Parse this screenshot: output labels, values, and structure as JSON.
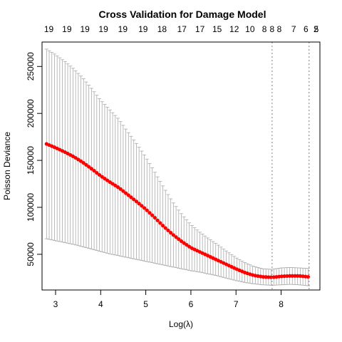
{
  "chart_data": {
    "type": "line",
    "title": "Cross Validation for Damage Model",
    "xlabel": "Log(λ)",
    "ylabel": "Poisson Deviance",
    "xlim": [
      2.7,
      8.86
    ],
    "ylim": [
      12000,
      276000
    ],
    "x_ticks": [
      3,
      4,
      5,
      6,
      7,
      8
    ],
    "y_ticks": [
      50000,
      100000,
      150000,
      200000,
      250000
    ],
    "top_axis": {
      "x": [
        2.85,
        3.08,
        3.32,
        3.55,
        3.79,
        4.03,
        4.26,
        4.5,
        4.73,
        4.97,
        5.21,
        5.44,
        5.68,
        5.91,
        6.15,
        6.39,
        6.62,
        6.86,
        7.09,
        7.33,
        7.56,
        7.8
      ],
      "labels": [
        "19",
        "19",
        "19",
        "19",
        "19",
        "19",
        "18",
        "17",
        "17",
        "15",
        "12",
        "10",
        "8",
        "8",
        "8",
        "7",
        "6",
        "5",
        "2"
      ],
      "label_x": [
        2.85,
        3.25,
        3.65,
        4.06,
        4.49,
        4.94,
        5.36,
        5.8,
        6.2,
        6.58,
        6.96,
        7.31,
        7.63,
        7.8,
        7.96,
        8.28,
        8.55,
        8.78,
        8.77
      ]
    },
    "vlines": [
      7.8,
      8.62
    ],
    "grid": false,
    "legend": "none",
    "series": [
      {
        "color": "#ff0000",
        "error_color": "#a9a9a9",
        "points": [
          {
            "x": 2.8,
            "y": 167500,
            "lo": 66500,
            "hi": 268500
          },
          {
            "x": 3.0,
            "y": 163500,
            "lo": 64500,
            "hi": 262500
          },
          {
            "x": 3.2,
            "y": 159000,
            "lo": 62500,
            "hi": 255500
          },
          {
            "x": 3.4,
            "y": 154000,
            "lo": 60500,
            "hi": 247500
          },
          {
            "x": 3.6,
            "y": 148000,
            "lo": 58000,
            "hi": 238000
          },
          {
            "x": 3.8,
            "y": 141000,
            "lo": 55500,
            "hi": 226500
          },
          {
            "x": 4.0,
            "y": 133500,
            "lo": 53000,
            "hi": 214000
          },
          {
            "x": 4.2,
            "y": 127000,
            "lo": 50500,
            "hi": 204000
          },
          {
            "x": 4.4,
            "y": 121000,
            "lo": 48500,
            "hi": 194000
          },
          {
            "x": 4.6,
            "y": 113500,
            "lo": 46500,
            "hi": 180500
          },
          {
            "x": 4.8,
            "y": 106000,
            "lo": 44500,
            "hi": 167500
          },
          {
            "x": 5.0,
            "y": 98000,
            "lo": 42500,
            "hi": 153500
          },
          {
            "x": 5.2,
            "y": 89000,
            "lo": 40500,
            "hi": 137500
          },
          {
            "x": 5.4,
            "y": 79500,
            "lo": 38500,
            "hi": 121000
          },
          {
            "x": 5.6,
            "y": 71000,
            "lo": 36500,
            "hi": 105500
          },
          {
            "x": 5.8,
            "y": 63500,
            "lo": 34500,
            "hi": 92500
          },
          {
            "x": 6.0,
            "y": 57000,
            "lo": 32500,
            "hi": 81500
          },
          {
            "x": 6.2,
            "y": 52500,
            "lo": 31000,
            "hi": 73500
          },
          {
            "x": 6.4,
            "y": 48000,
            "lo": 29000,
            "hi": 66500
          },
          {
            "x": 6.6,
            "y": 43500,
            "lo": 27000,
            "hi": 60000
          },
          {
            "x": 6.8,
            "y": 39000,
            "lo": 24500,
            "hi": 53000
          },
          {
            "x": 7.0,
            "y": 34500,
            "lo": 22000,
            "hi": 46500
          },
          {
            "x": 7.2,
            "y": 30500,
            "lo": 20000,
            "hi": 41000
          },
          {
            "x": 7.4,
            "y": 27500,
            "lo": 18500,
            "hi": 37000
          },
          {
            "x": 7.6,
            "y": 26000,
            "lo": 17500,
            "hi": 34500
          },
          {
            "x": 7.8,
            "y": 25500,
            "lo": 17000,
            "hi": 34000
          },
          {
            "x": 8.0,
            "y": 26500,
            "lo": 17500,
            "hi": 35500
          },
          {
            "x": 8.2,
            "y": 27000,
            "lo": 18000,
            "hi": 36000
          },
          {
            "x": 8.4,
            "y": 27000,
            "lo": 17500,
            "hi": 35500
          },
          {
            "x": 8.6,
            "y": 26000,
            "lo": 16500,
            "hi": 35000
          }
        ]
      }
    ]
  }
}
